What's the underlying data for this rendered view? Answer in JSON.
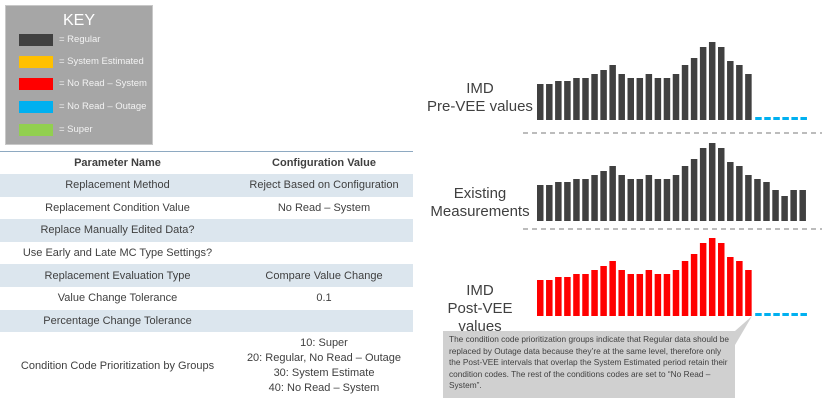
{
  "key": {
    "title": "KEY",
    "items": [
      {
        "label": "= Regular",
        "color": "#404040"
      },
      {
        "label": "= System Estimated",
        "color": "#ffc000"
      },
      {
        "label": "= No Read – System",
        "color": "#ff0000"
      },
      {
        "label": "= No Read – Outage",
        "color": "#00b0f0"
      },
      {
        "label": "= Super",
        "color": "#92d050"
      }
    ]
  },
  "table": {
    "headers": [
      "Parameter Name",
      "Configuration Value"
    ],
    "rows": [
      [
        "Replacement Method",
        "Reject Based on Configuration"
      ],
      [
        "Replacement Condition Value",
        "No Read – System"
      ],
      [
        "Replace Manually Edited Data?",
        ""
      ],
      [
        "Use Early and Late MC Type Settings?",
        ""
      ],
      [
        "Replacement Evaluation Type",
        "Compare Value Change"
      ],
      [
        "Value Change Tolerance",
        "0.1"
      ],
      [
        "Percentage Change Tolerance",
        ""
      ]
    ],
    "last_row": {
      "name": "Condition Code Prioritization by Groups",
      "values": [
        "10: Super",
        "20: Regular, No Read – Outage",
        "30: System Estimate",
        "40: No Read – System"
      ]
    }
  },
  "charts": {
    "pre_vee": {
      "label_line1": "IMD",
      "label_line2": "Pre-VEE values",
      "bars": [
        36,
        36,
        39,
        39,
        42,
        42,
        46,
        50,
        55,
        46,
        42,
        42,
        46,
        42,
        42,
        46,
        55,
        62,
        73,
        78,
        73,
        59,
        55,
        46
      ],
      "bar_color": "#404040",
      "outage_count": 6,
      "outage_color": "#00b0f0"
    },
    "existing": {
      "label_line1": "Existing",
      "label_line2": "Measurements",
      "bars": [
        36,
        36,
        39,
        39,
        42,
        42,
        46,
        50,
        55,
        46,
        42,
        42,
        46,
        42,
        42,
        46,
        55,
        62,
        73,
        78,
        73,
        59,
        55,
        46,
        42,
        39,
        31,
        25,
        31,
        31
      ],
      "bar_color": "#404040"
    },
    "post_vee": {
      "label_line1": "IMD",
      "label_line2": "Post-VEE values",
      "bars": [
        36,
        36,
        39,
        39,
        42,
        42,
        46,
        50,
        55,
        46,
        42,
        42,
        46,
        42,
        42,
        46,
        55,
        62,
        73,
        78,
        73,
        59,
        55,
        46
      ],
      "bar_color": "#ff0000",
      "outage_count": 6,
      "outage_color": "#00b0f0"
    }
  },
  "callout": {
    "text": "The condition code prioritization groups indicate that Regular data should be replaced by Outage data because they’re at the same level, therefore only the Post-VEE intervals that overlap the System Estimated period retain their condition codes.  The rest of the conditions codes are set to “No Read – System”."
  }
}
